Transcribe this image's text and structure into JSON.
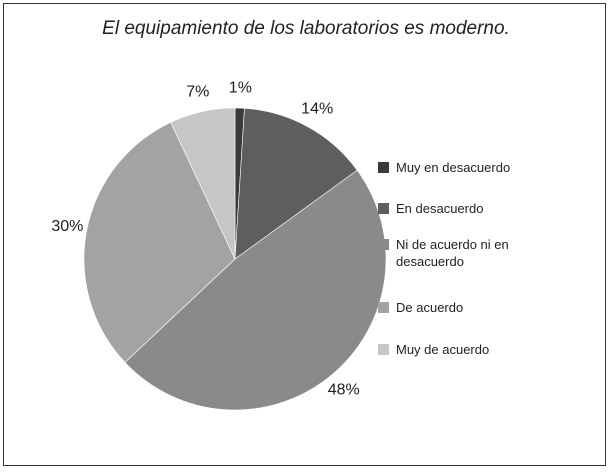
{
  "chart_data": {
    "type": "pie",
    "title": "El equipamiento de los laboratorios es moderno.",
    "categories": [
      "Muy en desacuerdo",
      "En desacuerdo",
      "Ni de acuerdo ni en desacuerdo",
      "De acuerdo",
      "Muy de acuerdo"
    ],
    "values": [
      1,
      14,
      48,
      30,
      7
    ],
    "value_labels": [
      "1%",
      "14%",
      "48%",
      "30%",
      "7%"
    ],
    "colors": [
      "#3a3a3a",
      "#5e5e5e",
      "#8a8a8a",
      "#a3a3a3",
      "#c6c6c6"
    ]
  }
}
